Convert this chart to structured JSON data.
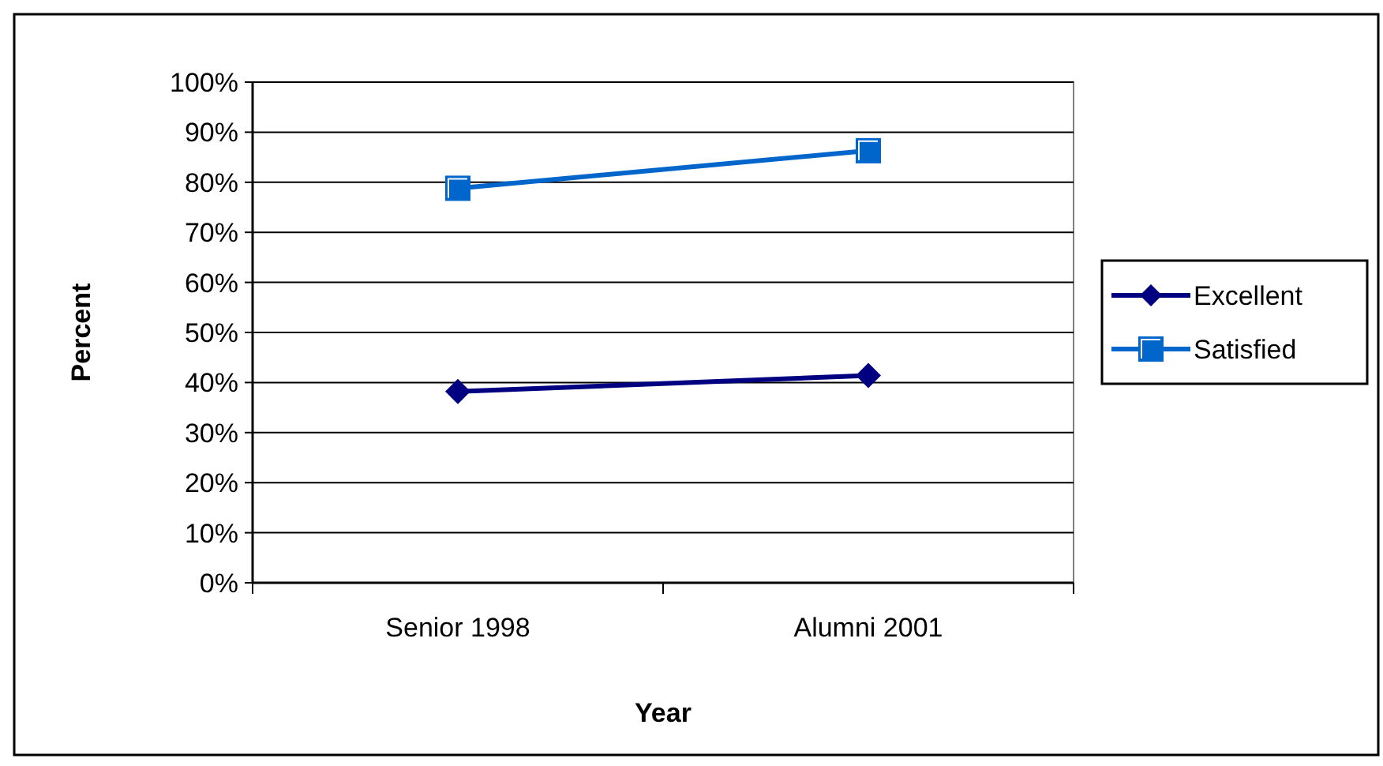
{
  "chart_data": {
    "type": "line",
    "xlabel": "Year",
    "ylabel": "Percent",
    "categories": [
      "Senior 1998",
      "Alumni 2001"
    ],
    "series": [
      {
        "name": "Excellent",
        "color": "#000080",
        "marker": "diamond",
        "values": [
          38.2,
          41.4
        ]
      },
      {
        "name": "Satisfied",
        "color": "#0066cc",
        "marker": "square",
        "values": [
          78.8,
          86.3
        ]
      }
    ],
    "ylim": [
      0,
      100
    ],
    "yticks": [
      {
        "value": 0,
        "label": "0%"
      },
      {
        "value": 10,
        "label": "10%"
      },
      {
        "value": 20,
        "label": "20%"
      },
      {
        "value": 30,
        "label": "30%"
      },
      {
        "value": 40,
        "label": "40%"
      },
      {
        "value": 50,
        "label": "50%"
      },
      {
        "value": 60,
        "label": "60%"
      },
      {
        "value": 70,
        "label": "70%"
      },
      {
        "value": 80,
        "label": "80%"
      },
      {
        "value": 90,
        "label": "90%"
      },
      {
        "value": 100,
        "label": "100%"
      }
    ],
    "grid": "y",
    "legend": "right",
    "line_style": "solid"
  }
}
